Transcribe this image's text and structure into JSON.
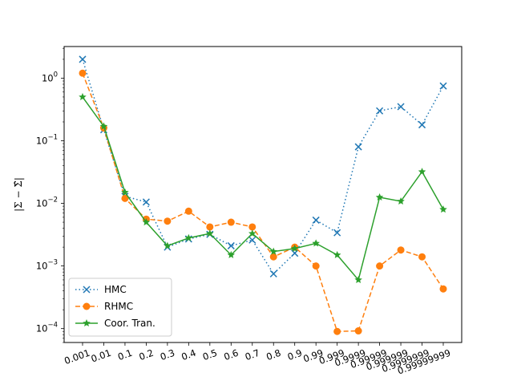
{
  "chart_data": {
    "type": "line",
    "yscale": "log",
    "ylim": [
      6e-05,
      3.2
    ],
    "ylabel": "|Σ − Σ̂|",
    "categories": [
      "0.001",
      "0.01",
      "0.1",
      "0.2",
      "0.3",
      "0.4",
      "0.5",
      "0.6",
      "0.7",
      "0.8",
      "0.9",
      "0.99",
      "0.999",
      "0.9999",
      "0.99999",
      "0.999999",
      "0.9999999",
      "0.99999999"
    ],
    "y_ticks": [
      {
        "value": 0.0001,
        "base": "10",
        "exp": "−4"
      },
      {
        "value": 0.001,
        "base": "10",
        "exp": "−3"
      },
      {
        "value": 0.01,
        "base": "10",
        "exp": "−2"
      },
      {
        "value": 0.1,
        "base": "10",
        "exp": "−1"
      },
      {
        "value": 1,
        "base": "10",
        "exp": "0"
      }
    ],
    "grid": false,
    "legend_position": "lower-left",
    "series": [
      {
        "name": "HMC",
        "color": "#1f77b4",
        "dash": "dotted",
        "marker": "x",
        "values": [
          2.0,
          0.15,
          0.013,
          0.0105,
          0.002,
          0.0027,
          0.0032,
          0.0021,
          0.0026,
          0.00075,
          0.0016,
          0.0054,
          0.0034,
          0.08,
          0.3,
          0.35,
          0.18,
          0.75
        ]
      },
      {
        "name": "RHMC",
        "color": "#ff7f0e",
        "dash": "dashed",
        "marker": "circle",
        "values": [
          1.2,
          0.16,
          0.012,
          0.0056,
          0.0052,
          0.0075,
          0.0042,
          0.005,
          0.0042,
          0.0014,
          0.002,
          0.001,
          9e-05,
          9.2e-05,
          0.001,
          0.0018,
          0.0014,
          0.00043
        ]
      },
      {
        "name": "Coor. Tran.",
        "color": "#2ca02c",
        "dash": "solid",
        "marker": "star",
        "values": [
          0.5,
          0.17,
          0.015,
          0.005,
          0.0021,
          0.0028,
          0.0033,
          0.0015,
          0.0033,
          0.0017,
          0.0019,
          0.0023,
          0.0015,
          0.0006,
          0.0125,
          0.0108,
          0.032,
          0.008
        ]
      }
    ]
  }
}
